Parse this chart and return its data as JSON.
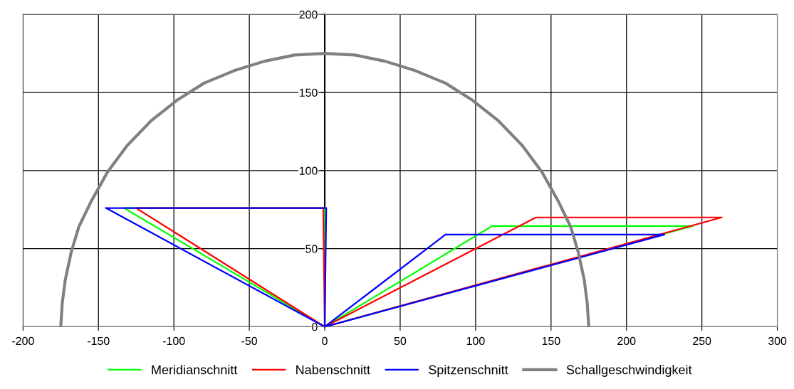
{
  "chart_data": {
    "type": "line",
    "xlim": [
      -200,
      300
    ],
    "ylim": [
      0,
      200
    ],
    "xticks": [
      -200,
      -150,
      -100,
      -50,
      0,
      50,
      100,
      150,
      200,
      250,
      300
    ],
    "yticks": [
      0,
      50,
      100,
      150,
      200
    ],
    "grid": true,
    "legend": "bottom",
    "series": [
      {
        "name": "Meridianschnitt",
        "color": "#00ff00",
        "x": [
          -133,
          0,
          null,
          -133,
          0,
          null,
          0,
          0,
          null,
          0,
          111,
          244,
          null,
          0,
          244
        ],
        "values": [
          76,
          0,
          null,
          76,
          76,
          null,
          0,
          76,
          null,
          0,
          64.5,
          64.5,
          null,
          0,
          64.5
        ]
      },
      {
        "name": "Nabenschnitt",
        "color": "#ff0000",
        "x": [
          -125,
          0,
          null,
          -125,
          -1,
          null,
          -1,
          0,
          null,
          0,
          140,
          263,
          null,
          0,
          263
        ],
        "values": [
          76,
          0,
          null,
          76,
          76,
          null,
          76,
          0,
          null,
          0,
          70,
          70,
          null,
          0,
          70
        ]
      },
      {
        "name": "Spitzenschnitt",
        "color": "#0000ff",
        "x": [
          -145,
          0,
          null,
          -145,
          1,
          null,
          0,
          1,
          null,
          0,
          80,
          225,
          null,
          0,
          225
        ],
        "values": [
          76,
          0,
          null,
          76,
          76,
          null,
          0,
          76,
          null,
          0,
          59,
          59,
          null,
          0,
          59
        ]
      },
      {
        "name": "Schallgeschwindigkeit",
        "color": "#808080",
        "x": [
          -175,
          -174,
          -172,
          -168,
          -163,
          -155,
          -144,
          -131,
          -115,
          -98,
          -80,
          -60,
          -40,
          -20,
          0,
          20,
          40,
          60,
          80,
          98,
          115,
          131,
          144,
          155,
          163,
          168,
          172,
          174,
          175
        ],
        "values": [
          0,
          15,
          30,
          48,
          64,
          80,
          99,
          116,
          132,
          145,
          156,
          164,
          170,
          174,
          175,
          174,
          170,
          164,
          156,
          145,
          132,
          116,
          99,
          80,
          64,
          48,
          30,
          15,
          0
        ]
      }
    ]
  }
}
